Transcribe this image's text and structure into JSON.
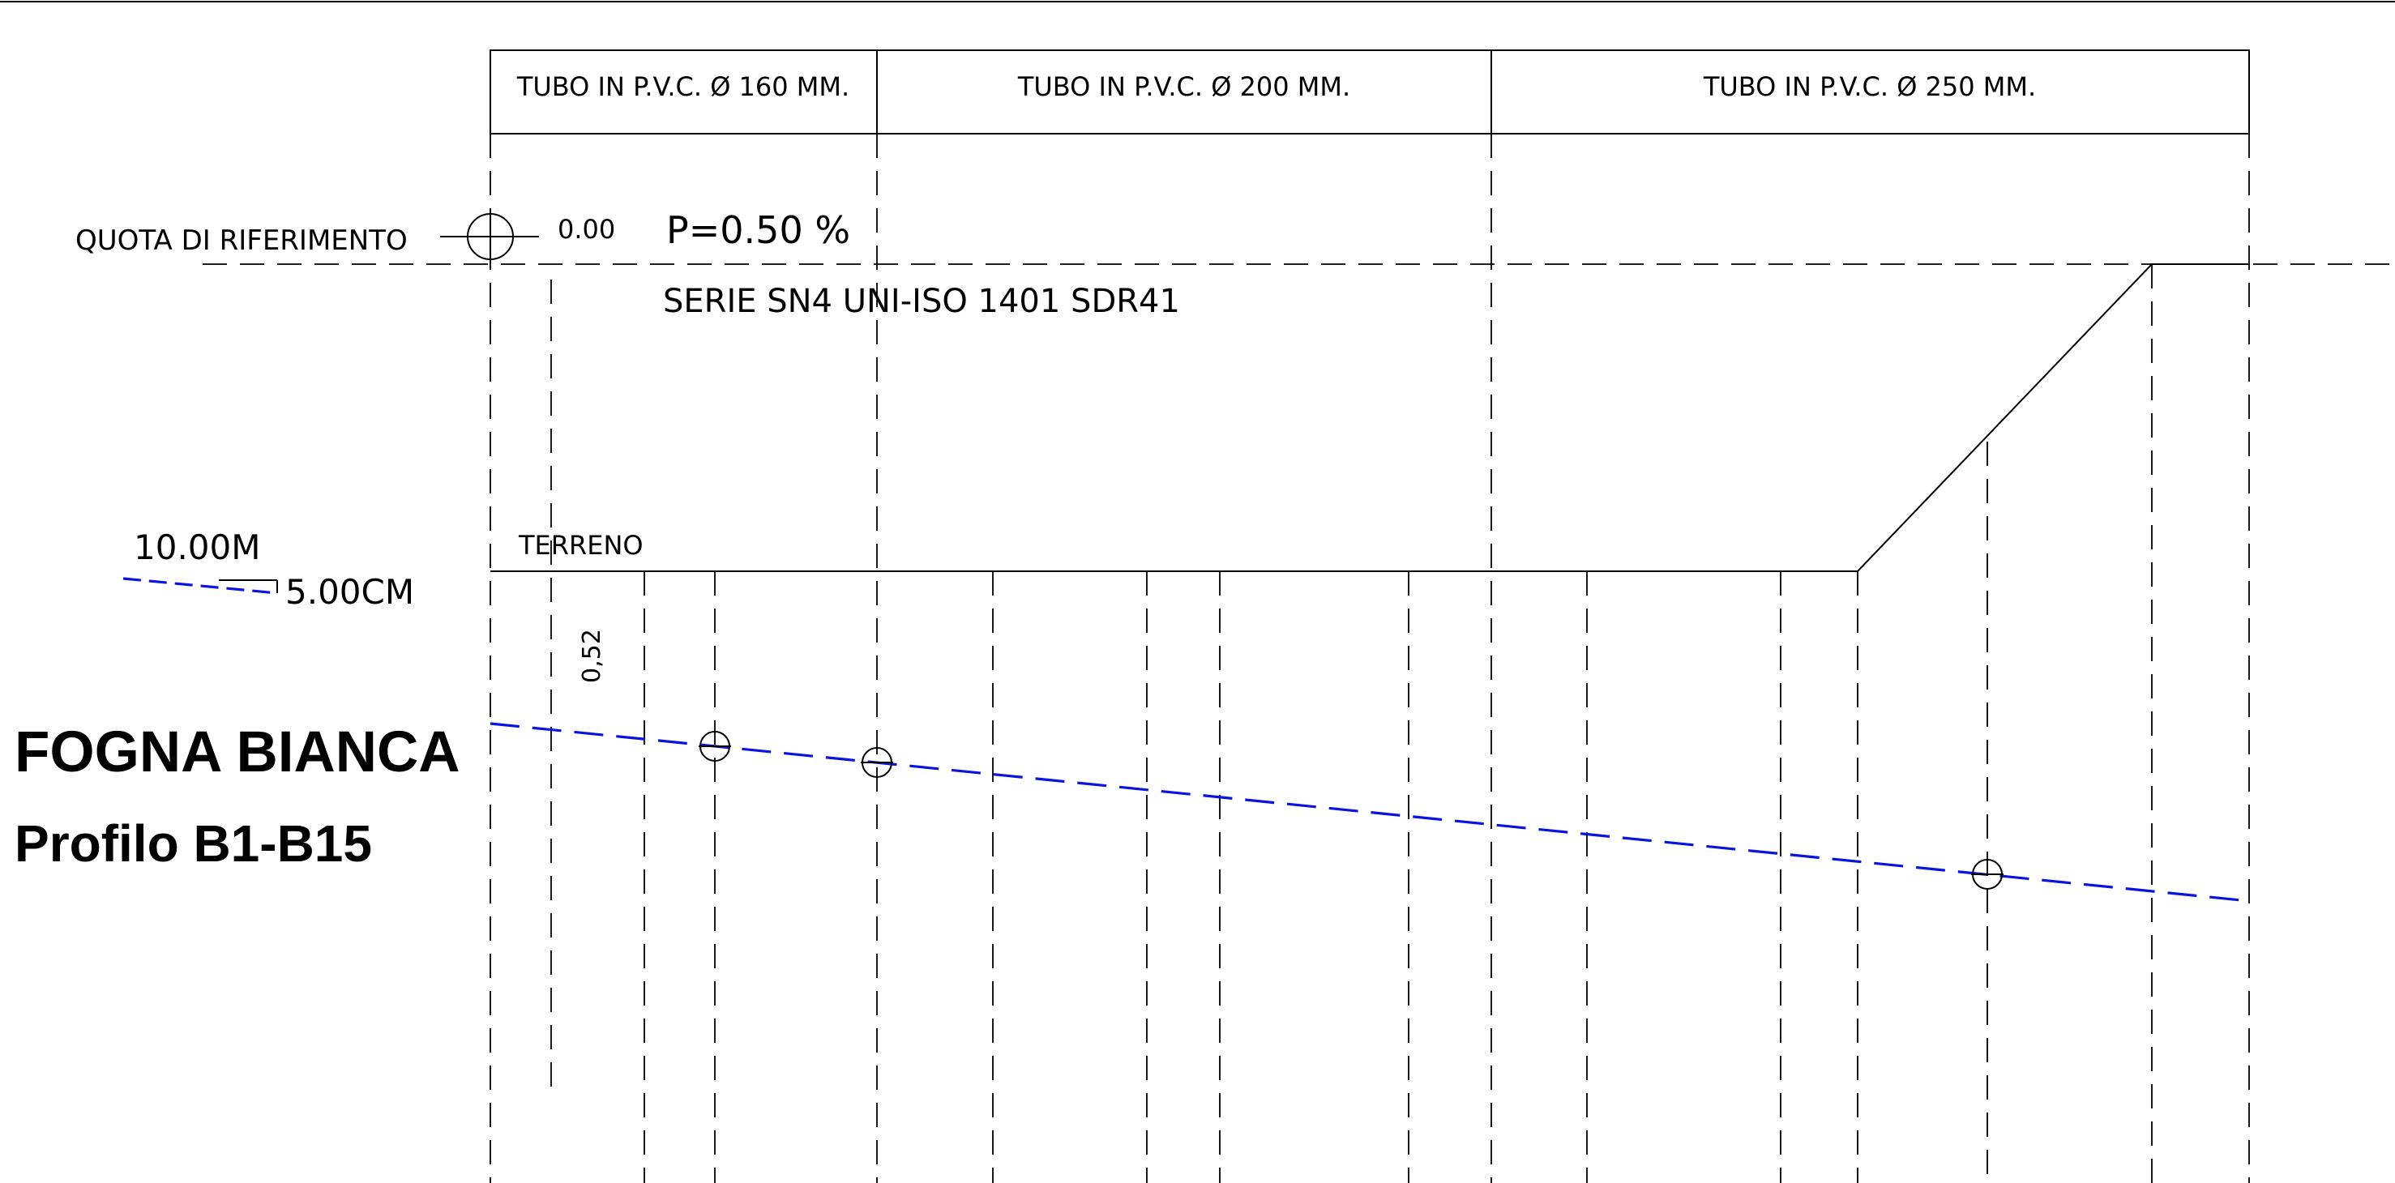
{
  "header_cells": [
    {
      "label": "TUBO IN P.V.C. Ø 160 MM."
    },
    {
      "label": "TUBO IN P.V.C. Ø 200 MM."
    },
    {
      "label": "TUBO IN P.V.C. Ø 250 MM."
    }
  ],
  "reference": {
    "label": "QUOTA DI RIFERIMENTO",
    "value": "0.00"
  },
  "slope_label": "P=0.50 %",
  "series_label": "SERIE SN4 UNI-ISO 1401 SDR41",
  "ground_label": "TERRENO",
  "scale": {
    "horizontal": "10.00M",
    "vertical": "5.00CM"
  },
  "depth_label": "0,52",
  "title": {
    "line1": "FOGNA BIANCA",
    "line2": "Profilo B1-B15"
  },
  "colors": {
    "pipe": "#0a14e0",
    "lines": "#000000",
    "background": "#ffffff"
  }
}
